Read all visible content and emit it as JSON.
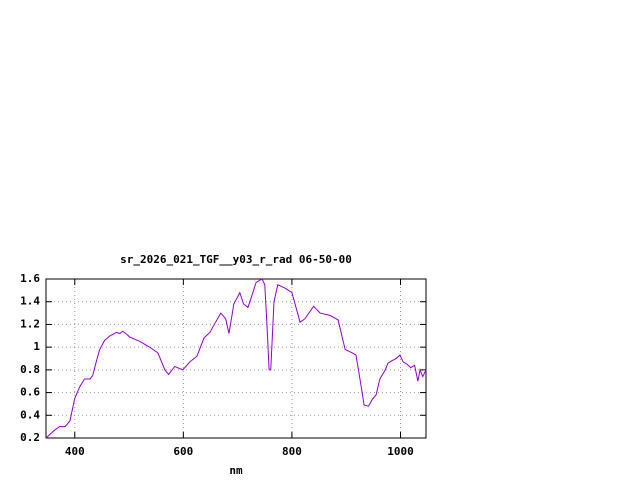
{
  "chart_data": {
    "type": "line",
    "title": "sr_2026_021_TGF__y03_r_rad 06-50-00",
    "xlabel": "nm",
    "x": [
      347,
      363,
      372,
      382,
      391,
      400,
      409,
      418,
      428,
      433,
      440,
      446,
      455,
      465,
      477,
      483,
      488,
      494,
      501,
      520,
      538,
      553,
      566,
      573,
      584,
      599,
      612,
      625,
      638,
      649,
      657,
      669,
      678,
      684,
      693,
      704,
      711,
      719,
      726,
      734,
      745,
      750,
      754,
      758,
      761,
      767,
      774,
      787,
      800,
      815,
      824,
      840,
      852,
      870,
      885,
      892,
      898,
      911,
      918,
      926,
      933,
      941,
      948,
      955,
      962,
      972,
      977,
      984,
      992,
      999,
      1005,
      1012,
      1019,
      1026,
      1032,
      1036,
      1041,
      1047
    ],
    "series": [
      {
        "color": "#9400d3",
        "values": [
          0.2,
          0.27,
          0.3,
          0.3,
          0.35,
          0.55,
          0.65,
          0.72,
          0.72,
          0.75,
          0.88,
          0.98,
          1.06,
          1.1,
          1.13,
          1.12,
          1.14,
          1.12,
          1.09,
          1.05,
          1.0,
          0.95,
          0.8,
          0.76,
          0.83,
          0.8,
          0.87,
          0.92,
          1.08,
          1.13,
          1.2,
          1.3,
          1.25,
          1.12,
          1.38,
          1.48,
          1.38,
          1.35,
          1.45,
          1.57,
          1.6,
          1.55,
          1.2,
          0.8,
          0.8,
          1.4,
          1.55,
          1.52,
          1.48,
          1.22,
          1.25,
          1.36,
          1.3,
          1.28,
          1.24,
          1.1,
          0.98,
          0.95,
          0.93,
          0.7,
          0.49,
          0.48,
          0.54,
          0.58,
          0.72,
          0.8,
          0.86,
          0.88,
          0.9,
          0.93,
          0.87,
          0.85,
          0.82,
          0.84,
          0.7,
          0.8,
          0.74,
          0.8
        ]
      }
    ],
    "xlim": [
      347,
      1047
    ],
    "xticks": [
      400,
      600,
      800,
      1000
    ],
    "ylim": [
      0.2,
      1.6
    ],
    "yticks": [
      0.2,
      0.4,
      0.6,
      0.8,
      1,
      1.2,
      1.4,
      1.6
    ],
    "grid": true
  }
}
